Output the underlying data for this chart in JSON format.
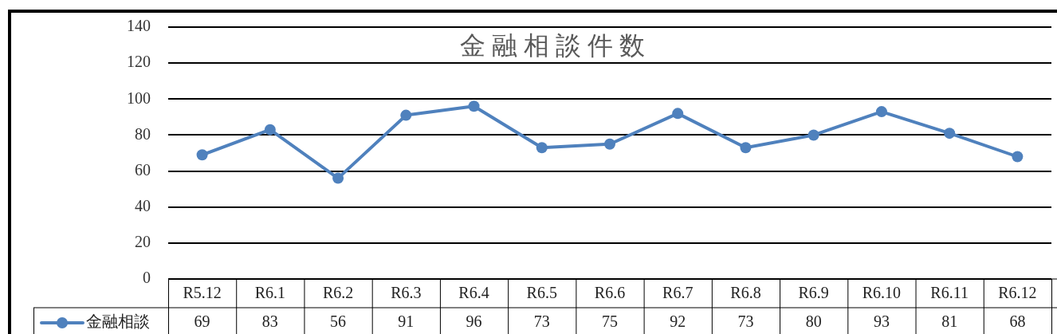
{
  "chart_data": {
    "type": "line",
    "title": "金 融 相 談 件 数",
    "categories": [
      "R5.12",
      "R6.1",
      "R6.2",
      "R6.3",
      "R6.4",
      "R6.5",
      "R6.6",
      "R6.7",
      "R6.8",
      "R6.9",
      "R6.10",
      "R6.11",
      "R6.12"
    ],
    "series": [
      {
        "name": "金融相談",
        "color": "#4f81bd",
        "values": [
          69,
          83,
          56,
          91,
          96,
          73,
          75,
          92,
          73,
          80,
          93,
          81,
          68
        ]
      }
    ],
    "ylim": [
      0,
      140
    ],
    "yticks": [
      0,
      20,
      40,
      60,
      80,
      100,
      120,
      140
    ],
    "grid": "y",
    "marker": "circle",
    "line_style": "solid",
    "data_labels": true,
    "legend": "bottom left"
  }
}
